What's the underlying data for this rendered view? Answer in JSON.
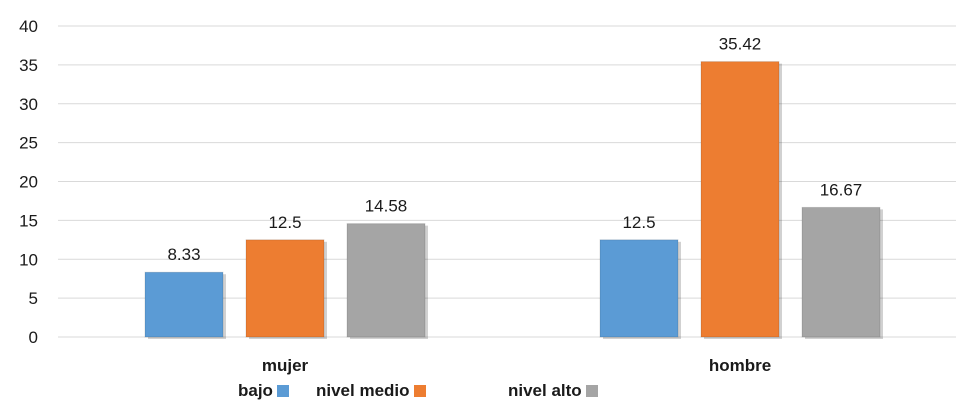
{
  "chart_data": {
    "type": "bar",
    "categories": [
      "mujer",
      "hombre"
    ],
    "series": [
      {
        "name": "bajo",
        "color": "#5b9bd5",
        "values": [
          8.33,
          12.5
        ]
      },
      {
        "name": "nivel medio",
        "color": "#ed7d31",
        "values": [
          12.5,
          35.42
        ]
      },
      {
        "name": "nivel alto",
        "color": "#a5a5a5",
        "values": [
          14.58,
          16.67
        ]
      }
    ],
    "data_labels": [
      [
        "8.33",
        "12.5"
      ],
      [
        "12.5",
        "35.42"
      ],
      [
        "14.58",
        "16.67"
      ]
    ],
    "ylim": [
      0,
      40
    ],
    "yticks": [
      "0",
      "5",
      "10",
      "15",
      "20",
      "25",
      "30",
      "35",
      "40"
    ],
    "title": "",
    "xlabel": "",
    "ylabel": "",
    "grid": true,
    "legend_position": "bottom"
  }
}
